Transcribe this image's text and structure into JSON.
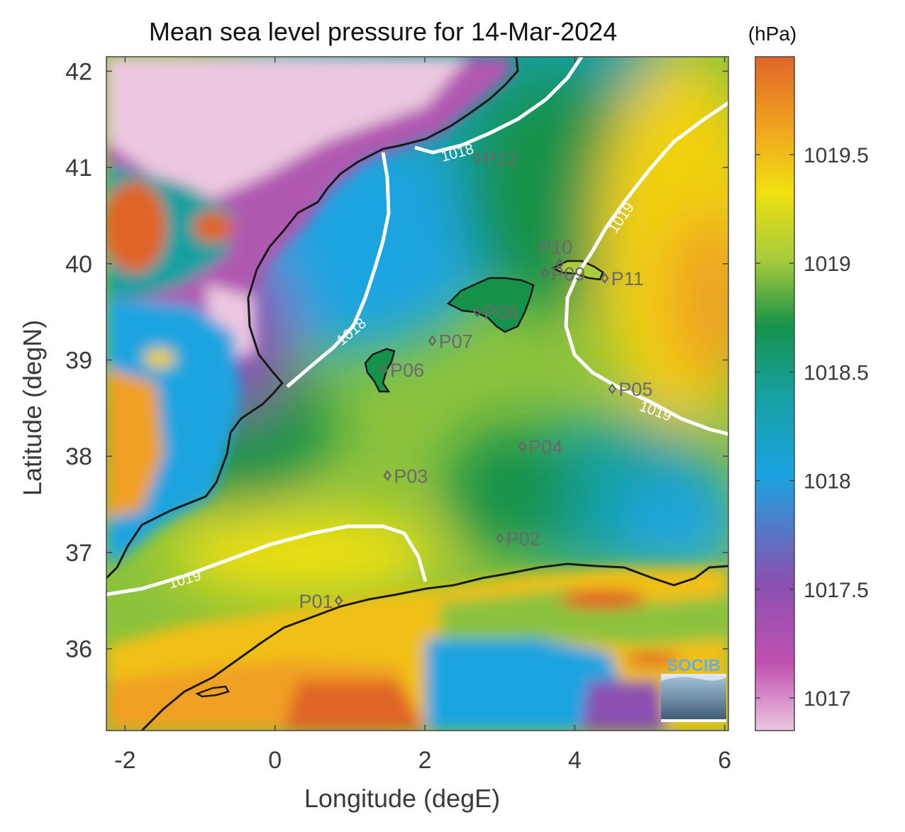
{
  "figure": {
    "title": "Mean sea level pressure for 14-Mar-2024",
    "xlabel": "Longitude (degE)",
    "ylabel": "Latitude (degN)",
    "x_ticks": [
      "-2",
      "0",
      "2",
      "4",
      "6"
    ],
    "y_ticks": [
      "36",
      "37",
      "38",
      "39",
      "40",
      "41",
      "42"
    ],
    "colorbar": {
      "unit": "(hPa)",
      "ticks": [
        "1017",
        "1017.5",
        "1018",
        "1018.5",
        "1019",
        "1019.5"
      ],
      "range": [
        1016.85,
        1019.95
      ],
      "colormap": [
        "#ecc8e0",
        "#c050b0",
        "#8a50b0",
        "#1ba3e0",
        "#17a0a0",
        "#16924a",
        "#a8cc3c",
        "#f0e010",
        "#f0a020",
        "#e06528"
      ]
    },
    "logo": {
      "text": "SOCIB"
    }
  },
  "map": {
    "lon_range": [
      -2.25,
      6.05
    ],
    "lat_range": [
      35.15,
      42.15
    ],
    "contours": [
      {
        "label": "1018"
      },
      {
        "label": "1019"
      }
    ],
    "stations": [
      {
        "name": "P01",
        "lon": 0.85,
        "lat": 36.5
      },
      {
        "name": "P02",
        "lon": 3.0,
        "lat": 37.15
      },
      {
        "name": "P03",
        "lon": 1.5,
        "lat": 37.8
      },
      {
        "name": "P04",
        "lon": 3.3,
        "lat": 38.1
      },
      {
        "name": "P05",
        "lon": 4.5,
        "lat": 38.7
      },
      {
        "name": "P06",
        "lon": 1.45,
        "lat": 38.9
      },
      {
        "name": "P07",
        "lon": 2.1,
        "lat": 39.2
      },
      {
        "name": "P08",
        "lon": 2.7,
        "lat": 39.5
      },
      {
        "name": "P09",
        "lon": 3.6,
        "lat": 39.9
      },
      {
        "name": "P10",
        "lon": 3.8,
        "lat": 40.0
      },
      {
        "name": "P11",
        "lon": 4.4,
        "lat": 39.85
      },
      {
        "name": "P12",
        "lon": 2.7,
        "lat": 41.1
      }
    ]
  }
}
